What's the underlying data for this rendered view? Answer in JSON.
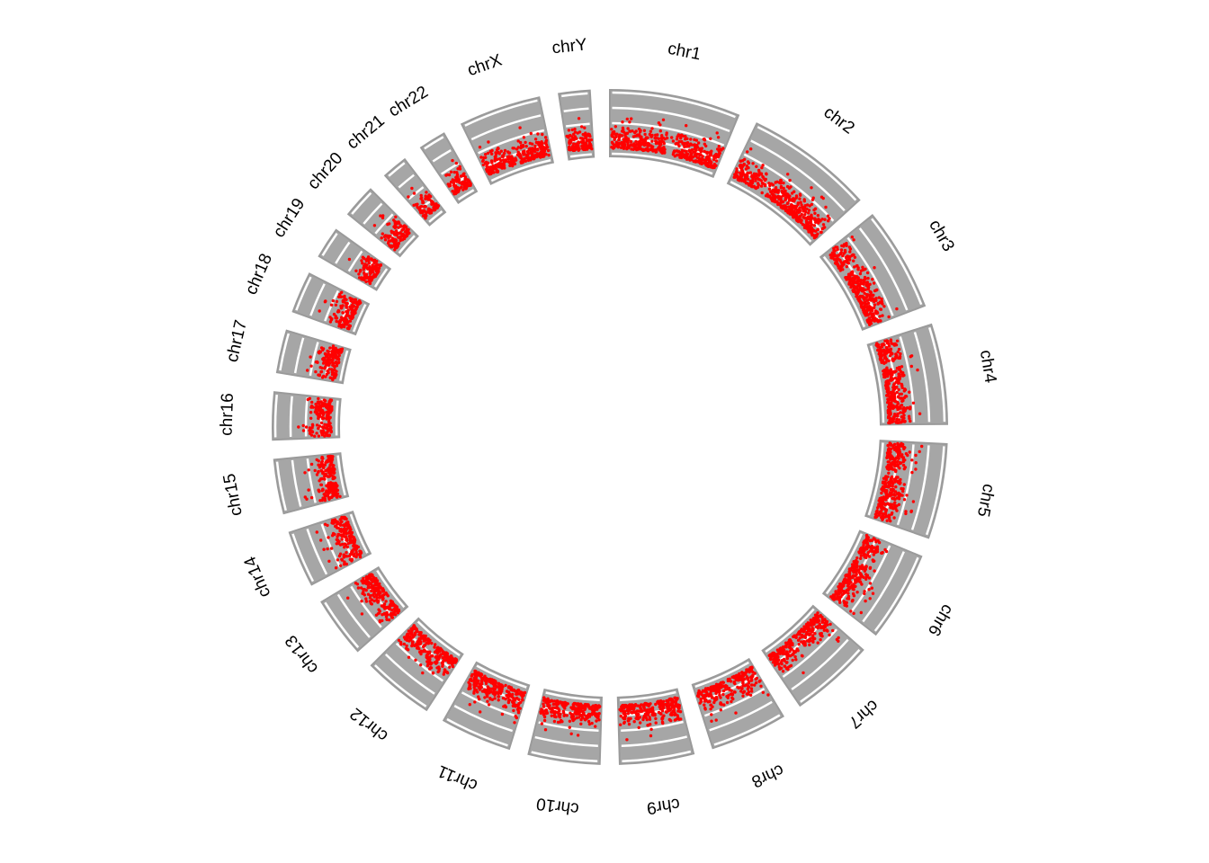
{
  "chart_data": {
    "type": "scatter",
    "layout": "circular",
    "title": "",
    "start_position": "top, clockwise",
    "sectors": [
      {
        "name": "chr1",
        "length_mb": 249
      },
      {
        "name": "chr2",
        "length_mb": 243
      },
      {
        "name": "chr3",
        "length_mb": 198
      },
      {
        "name": "chr4",
        "length_mb": 191
      },
      {
        "name": "chr5",
        "length_mb": 181
      },
      {
        "name": "chr6",
        "length_mb": 171
      },
      {
        "name": "chr7",
        "length_mb": 159
      },
      {
        "name": "chr8",
        "length_mb": 146
      },
      {
        "name": "chr9",
        "length_mb": 141
      },
      {
        "name": "chr10",
        "length_mb": 136
      },
      {
        "name": "chr11",
        "length_mb": 135
      },
      {
        "name": "chr12",
        "length_mb": 134
      },
      {
        "name": "chr13",
        "length_mb": 115
      },
      {
        "name": "chr14",
        "length_mb": 107
      },
      {
        "name": "chr15",
        "length_mb": 103
      },
      {
        "name": "chr16",
        "length_mb": 90
      },
      {
        "name": "chr17",
        "length_mb": 81
      },
      {
        "name": "chr18",
        "length_mb": 78
      },
      {
        "name": "chr19",
        "length_mb": 59
      },
      {
        "name": "chr20",
        "length_mb": 63
      },
      {
        "name": "chr21",
        "length_mb": 48
      },
      {
        "name": "chr22",
        "length_mb": 51
      },
      {
        "name": "chrX",
        "length_mb": 155
      },
      {
        "name": "chrY",
        "length_mb": 59
      }
    ],
    "track": {
      "fill": "#a6a6a6",
      "border": "#9a9a9a",
      "gridlines": 5,
      "gridline_color": "#ffffff"
    },
    "points": {
      "color": "#ff0000",
      "typical_y_range": [
        0.03,
        0.45
      ],
      "outlier_y_max": 0.65
    },
    "grid": true,
    "legend": "none"
  }
}
